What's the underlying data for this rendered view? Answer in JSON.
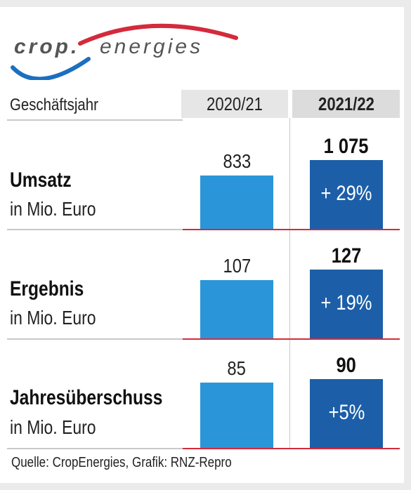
{
  "logo": {
    "word1": "crop.",
    "word2": "energies",
    "arc_color": "#d42a3c",
    "swoosh_color": "#1c6fc0"
  },
  "header": {
    "label": "Geschäftsjahr"
  },
  "source": "Quelle: CropEnergies, Grafik: RNZ-Repro",
  "chart_data": {
    "type": "bar",
    "categories": [
      "2020/21",
      "2021/22"
    ],
    "colors": {
      "2020/21": "#2a96d9",
      "2021/22": "#1c5fa8",
      "baseline": "#d42a3c"
    },
    "panels": [
      {
        "title": "Umsatz",
        "unit": "in Mio. Euro",
        "values": [
          833,
          1075
        ],
        "labels": [
          "833",
          "1 075"
        ],
        "change": "+ 29%"
      },
      {
        "title": "Ergebnis",
        "unit": "in Mio. Euro",
        "values": [
          107,
          127
        ],
        "labels": [
          "107",
          "127"
        ],
        "change": "+ 19%"
      },
      {
        "title": "Jahresüberschuss",
        "unit": "in Mio. Euro",
        "values": [
          85,
          90
        ],
        "labels": [
          "85",
          "90"
        ],
        "change": "+5%"
      }
    ]
  }
}
